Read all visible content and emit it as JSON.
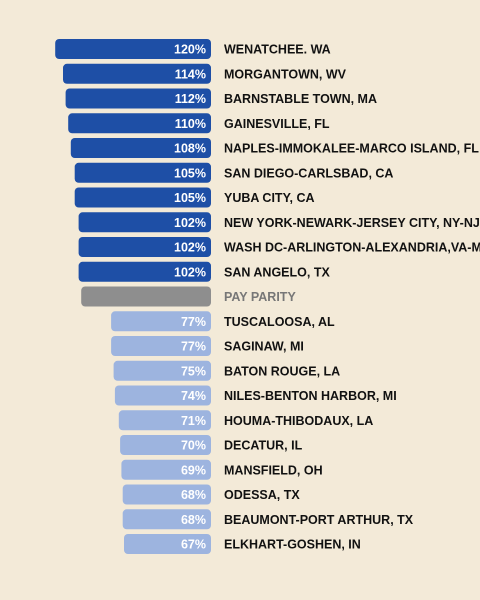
{
  "chart_data": {
    "type": "bar",
    "orientation": "horizontal",
    "grid": false,
    "xlim": [
      0,
      120
    ],
    "categories": [
      "WENATCHEE. WA",
      "MORGANTOWN, WV",
      "BARNSTABLE TOWN, MA",
      "GAINESVILLE, FL",
      "NAPLES-IMMOKALEE-MARCO ISLAND, FL",
      "SAN DIEGO-CARLSBAD, CA",
      "YUBA CITY, CA",
      "NEW YORK-NEWARK-JERSEY CITY, NY-NJ-PA",
      "WASH DC-ARLINGTON-ALEXANDRIA,VA-MD-WV",
      "SAN ANGELO, TX",
      "PAY PARITY",
      "TUSCALOOSA, AL",
      "SAGINAW, MI",
      "BATON ROUGE, LA",
      "NILES-BENTON HARBOR, MI",
      "HOUMA-THIBODAUX, LA",
      "DECATUR, IL",
      "MANSFIELD, OH",
      "ODESSA, TX",
      "BEAUMONT-PORT ARTHUR, TX",
      "ELKHART-GOSHEN, IN"
    ],
    "values": [
      120,
      114,
      112,
      110,
      108,
      105,
      105,
      102,
      102,
      102,
      100,
      77,
      77,
      75,
      74,
      71,
      70,
      69,
      68,
      68,
      67
    ],
    "value_labels": [
      "120%",
      "114%",
      "112%",
      "110%",
      "108%",
      "105%",
      "105%",
      "102%",
      "102%",
      "102%",
      "",
      "77%",
      "77%",
      "75%",
      "74%",
      "71%",
      "70%",
      "69%",
      "68%",
      "68%",
      "67%"
    ],
    "groups": [
      "above",
      "above",
      "above",
      "above",
      "above",
      "above",
      "above",
      "above",
      "above",
      "above",
      "parity",
      "below",
      "below",
      "below",
      "below",
      "below",
      "below",
      "below",
      "below",
      "below",
      "below"
    ]
  },
  "colors": {
    "background": "#f3ead8",
    "above": "#1e4fa6",
    "parity": "#8e8e8e",
    "below": "#9db4df",
    "value_text": "#ffffff",
    "label_text": "#111111",
    "parity_label_text": "#777777"
  }
}
